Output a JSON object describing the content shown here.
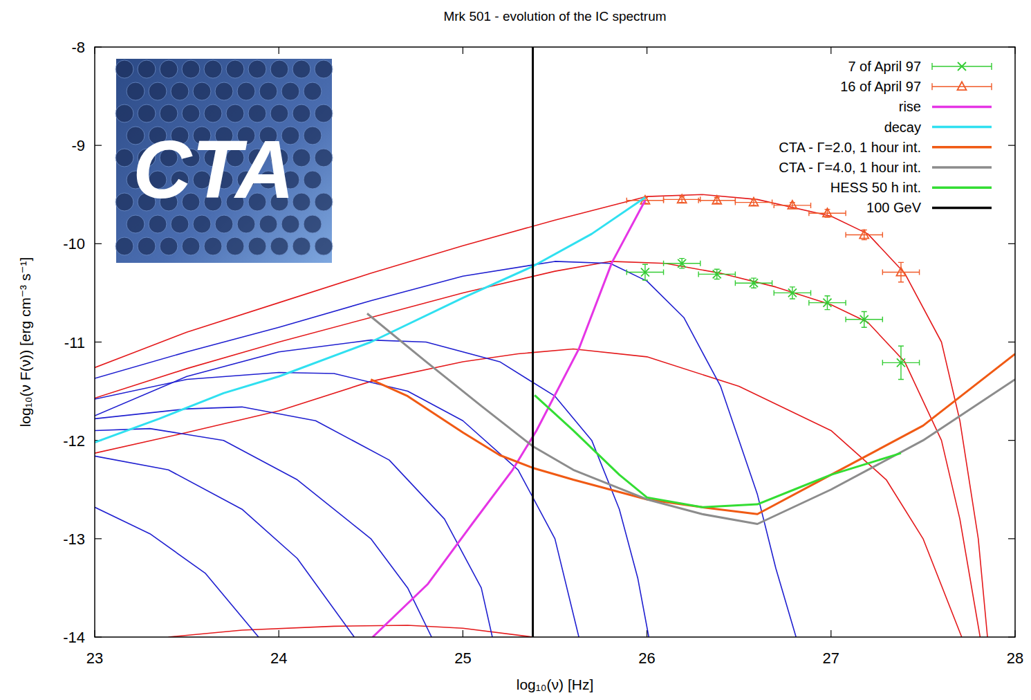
{
  "chart_data": {
    "type": "line",
    "title": "Mrk 501 - evolution of the IC spectrum",
    "x_label": "log₁₀(ν) [Hz]",
    "y_label": "log₁₀(ν F(ν)) [erg cm⁻³ s⁻¹]",
    "xlim": [
      23,
      28
    ],
    "ylim": [
      -14,
      -8
    ],
    "xticks": [
      23,
      24,
      25,
      26,
      27,
      28
    ],
    "yticks": [
      -14,
      -13,
      -12,
      -11,
      -10,
      -9,
      -8
    ],
    "grid": false,
    "legend": "top-right",
    "annotations": [
      {
        "text": "CTA"
      }
    ],
    "series": [
      {
        "color": "#e41a1c",
        "x": [
          23,
          23.5,
          24,
          24.5,
          25,
          25.5,
          26,
          26.3,
          26.6,
          27,
          27.2,
          27.4,
          27.6,
          27.7,
          27.8,
          27.85
        ],
        "values": [
          -11.26,
          -10.9,
          -10.6,
          -10.3,
          -10.02,
          -9.76,
          -9.52,
          -9.5,
          -9.55,
          -9.72,
          -9.9,
          -10.3,
          -11.0,
          -11.8,
          -13.0,
          -14
        ]
      },
      {
        "color": "#e41a1c",
        "x": [
          23,
          23.5,
          24,
          24.5,
          25,
          25.5,
          25.8,
          26.1,
          26.4,
          26.7,
          27,
          27.2,
          27.4,
          27.6,
          27.7,
          27.81
        ],
        "values": [
          -11.57,
          -11.27,
          -11.0,
          -10.75,
          -10.5,
          -10.28,
          -10.18,
          -10.2,
          -10.3,
          -10.44,
          -10.62,
          -10.8,
          -11.2,
          -12.0,
          -12.8,
          -14
        ]
      },
      {
        "color": "#e41a1c",
        "x": [
          23,
          23.5,
          24,
          24.5,
          25,
          25.3,
          25.6,
          26,
          26.5,
          27,
          27.3,
          27.5,
          27.71
        ],
        "values": [
          -12.13,
          -11.92,
          -11.7,
          -11.4,
          -11.2,
          -11.12,
          -11.07,
          -11.15,
          -11.45,
          -11.9,
          -12.4,
          -13.0,
          -14
        ]
      },
      {
        "color": "#e41a1c",
        "x": [
          23.4,
          23.8,
          24.3,
          24.7,
          25.0,
          25.38
        ],
        "values": [
          -14,
          -13.93,
          -13.89,
          -13.88,
          -13.91,
          -14
        ]
      },
      {
        "color": "#1f1fd0",
        "x": [
          23,
          23.5,
          24,
          24.5,
          25,
          25.5,
          25.8,
          26,
          26.2,
          26.4,
          26.6,
          26.7,
          26.81
        ],
        "values": [
          -11.37,
          -11.1,
          -10.85,
          -10.58,
          -10.33,
          -10.18,
          -10.2,
          -10.38,
          -10.75,
          -11.45,
          -12.55,
          -13.3,
          -14
        ]
      },
      {
        "color": "#1f1fd0",
        "x": [
          23,
          23.5,
          24,
          24.5,
          24.8,
          25.2,
          25.5,
          25.7,
          25.85,
          25.95,
          26.01
        ],
        "values": [
          -11.75,
          -11.35,
          -11.1,
          -10.98,
          -11.0,
          -11.2,
          -11.55,
          -12.0,
          -12.7,
          -13.4,
          -14
        ]
      },
      {
        "color": "#1f1fd0",
        "x": [
          23,
          23.5,
          24,
          24.3,
          24.7,
          25,
          25.3,
          25.5,
          25.63
        ],
        "values": [
          -11.58,
          -11.38,
          -11.31,
          -11.32,
          -11.5,
          -11.8,
          -12.3,
          -13.0,
          -14
        ]
      },
      {
        "color": "#1f1fd0",
        "x": [
          23,
          23.5,
          23.8,
          24.2,
          24.6,
          24.9,
          25.1,
          25.16
        ],
        "values": [
          -11.78,
          -11.68,
          -11.66,
          -11.8,
          -12.2,
          -12.8,
          -13.5,
          -14
        ]
      },
      {
        "color": "#1f1fd0",
        "x": [
          23,
          23.3,
          23.7,
          24.1,
          24.5,
          24.7,
          24.83
        ],
        "values": [
          -11.9,
          -11.88,
          -12.0,
          -12.4,
          -13.0,
          -13.5,
          -14
        ]
      },
      {
        "color": "#1f1fd0",
        "x": [
          23,
          23.4,
          23.8,
          24.1,
          24.41
        ],
        "values": [
          -12.16,
          -12.3,
          -12.7,
          -13.2,
          -14
        ]
      },
      {
        "color": "#1f1fd0",
        "x": [
          23,
          23.3,
          23.6,
          23.89
        ],
        "values": [
          -12.68,
          -12.95,
          -13.35,
          -14
        ]
      },
      {
        "name": "7 of April 97",
        "type": "scatter",
        "color": "#33cc33",
        "marker": "x",
        "line_style": "none",
        "x": [
          25.99,
          26.19,
          26.38,
          26.58,
          26.79,
          26.98,
          27.18,
          27.38
        ],
        "values": [
          -10.29,
          -10.2,
          -10.31,
          -10.4,
          -10.5,
          -10.6,
          -10.77,
          -11.21
        ],
        "x_err": [
          0.1,
          0.1,
          0.1,
          0.1,
          0.1,
          0.1,
          0.1,
          0.1
        ],
        "y_err": [
          0.08,
          0.05,
          0.05,
          0.05,
          0.06,
          0.07,
          0.08,
          0.17
        ]
      },
      {
        "name": "16 of April 97",
        "type": "scatter",
        "color": "#f05a28",
        "marker": "triangle",
        "line_style": "none",
        "x": [
          25.99,
          26.19,
          26.38,
          26.58,
          26.79,
          26.98,
          27.18,
          27.38
        ],
        "values": [
          -9.56,
          -9.55,
          -9.56,
          -9.58,
          -9.61,
          -9.69,
          -9.91,
          -10.29
        ],
        "x_err": [
          0.1,
          0.1,
          0.1,
          0.1,
          0.1,
          0.1,
          0.1,
          0.1
        ],
        "y_err": [
          0.03,
          0.03,
          0.03,
          0.03,
          0.03,
          0.04,
          0.05,
          0.1
        ]
      },
      {
        "name": "rise",
        "color": "#e535e5",
        "x": [
          24.51,
          24.81,
          25.05,
          25.27,
          25.4,
          25.63,
          25.81,
          25.99
        ],
        "values": [
          -14,
          -13.46,
          -12.85,
          -12.3,
          -11.9,
          -11.07,
          -10.19,
          -9.56
        ]
      },
      {
        "name": "decay",
        "color": "#30e0f0",
        "x": [
          23,
          23.35,
          23.7,
          24.0,
          24.5,
          25.0,
          25.38,
          25.7,
          25.99
        ],
        "values": [
          -12.02,
          -11.78,
          -11.52,
          -11.35,
          -11.0,
          -10.55,
          -10.23,
          -9.9,
          -9.53
        ]
      },
      {
        "name": "CTA - Γ=2.0, 1 hour int.",
        "color": "#f05a14",
        "x": [
          24.5,
          24.7,
          25.0,
          25.2,
          25.38,
          25.6,
          26.0,
          26.3,
          26.6,
          27.0,
          27.5,
          28.0
        ],
        "values": [
          -11.38,
          -11.55,
          -11.92,
          -12.15,
          -12.28,
          -12.4,
          -12.6,
          -12.68,
          -12.75,
          -12.35,
          -11.85,
          -11.12
        ]
      },
      {
        "name": "CTA - Γ=4.0, 1 hour int.",
        "color": "#8c8c8c",
        "x": [
          24.48,
          24.8,
          25.1,
          25.38,
          25.6,
          26.0,
          26.3,
          26.6,
          27.0,
          27.5,
          28.0
        ],
        "values": [
          -10.71,
          -11.2,
          -11.65,
          -12.06,
          -12.3,
          -12.6,
          -12.75,
          -12.85,
          -12.5,
          -12.0,
          -11.38
        ]
      },
      {
        "name": "HESS 50 h int.",
        "color": "#33dd33",
        "x": [
          25.39,
          25.6,
          25.85,
          26.0,
          26.3,
          26.6,
          26.8,
          27.0,
          27.38
        ],
        "values": [
          -11.54,
          -11.9,
          -12.35,
          -12.58,
          -12.68,
          -12.65,
          -12.5,
          -12.35,
          -12.13
        ]
      },
      {
        "name": "100 GeV",
        "color": "#000000",
        "x": [
          25.38,
          25.38
        ],
        "values": [
          -14,
          -8
        ]
      }
    ]
  }
}
